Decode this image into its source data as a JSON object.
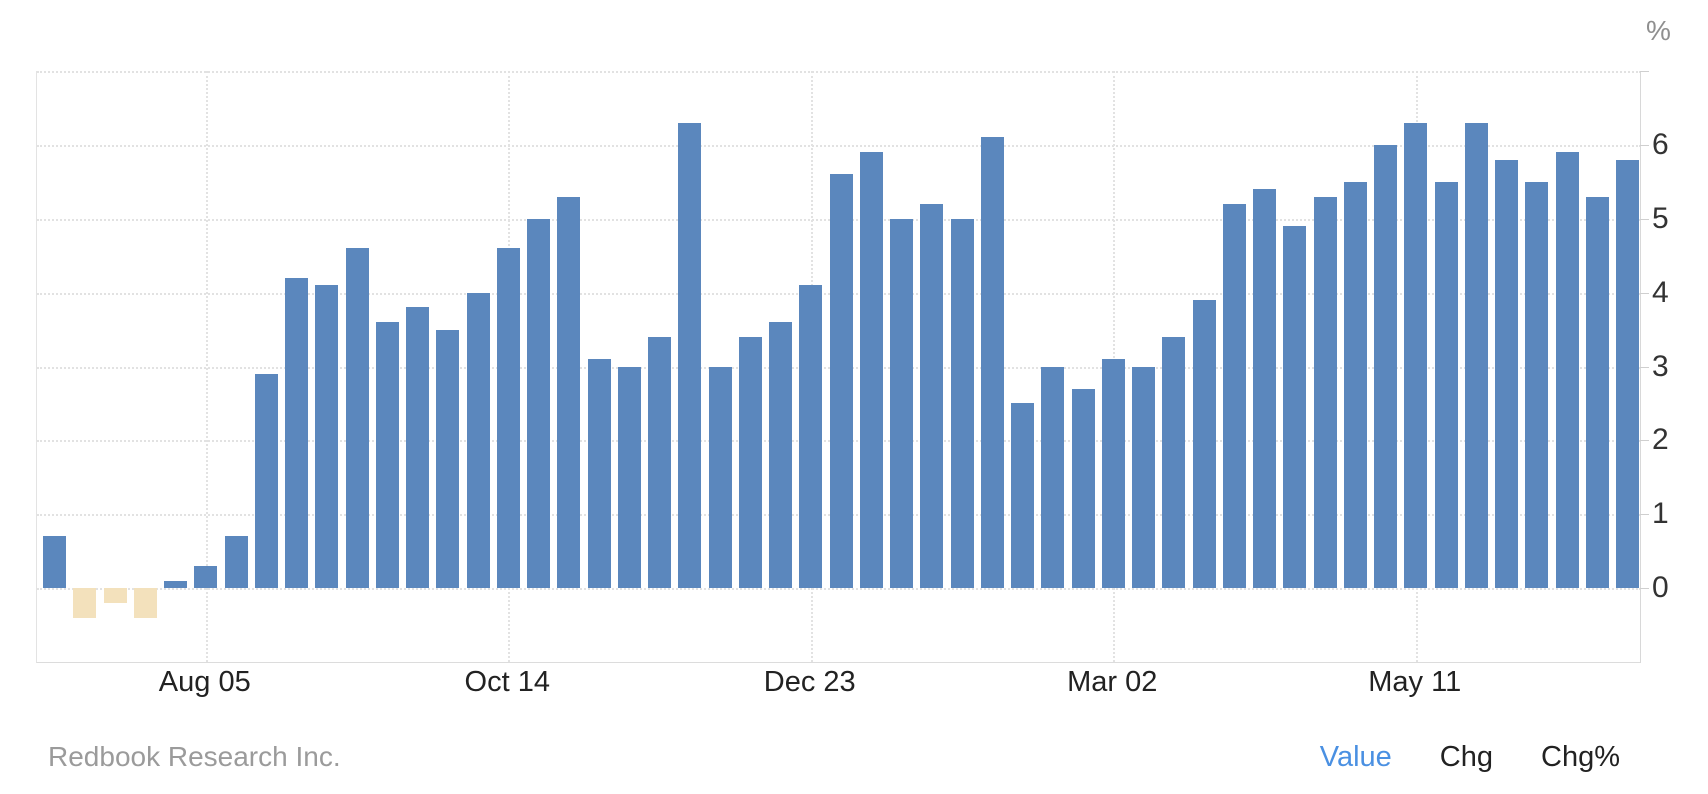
{
  "header": {
    "unit_label": "%"
  },
  "footer": {
    "source": "Redbook Research Inc.",
    "tabs": [
      {
        "label": "Value",
        "active": true
      },
      {
        "label": "Chg",
        "active": false
      },
      {
        "label": "Chg%",
        "active": false
      }
    ]
  },
  "colors": {
    "bar_positive": "#5b87bd",
    "bar_negative": "#f3e1bc",
    "active_tab": "#4a90e2",
    "grid": "#e2e2e2",
    "axis_text": "#333333",
    "date_text": "#222222",
    "muted_text": "#9b9b9b"
  },
  "chart_data": {
    "type": "bar",
    "title": "",
    "xlabel": "",
    "ylabel": "%",
    "values": [
      0.7,
      -0.4,
      -0.2,
      -0.4,
      0.1,
      0.3,
      0.7,
      2.9,
      4.2,
      4.1,
      4.6,
      3.6,
      3.8,
      3.5,
      4.0,
      4.6,
      5.0,
      5.3,
      3.1,
      3.0,
      3.4,
      6.3,
      3.0,
      3.4,
      3.6,
      4.1,
      5.6,
      5.9,
      5.0,
      5.2,
      5.0,
      6.1,
      2.5,
      3.0,
      2.7,
      3.1,
      3.0,
      3.4,
      3.9,
      5.2,
      5.4,
      4.9,
      5.3,
      5.5,
      6.0,
      6.3,
      5.5,
      6.3,
      5.8,
      5.5,
      5.9,
      5.3,
      5.8
    ],
    "x_tick_labels": [
      "Aug 05",
      "Oct 14",
      "Dec 23",
      "Mar 02",
      "May 11"
    ],
    "x_tick_indices": [
      5,
      15,
      25,
      35,
      45
    ],
    "y_ticks": [
      0,
      1,
      2,
      3,
      4,
      5,
      6
    ],
    "ylim": [
      -1,
      7
    ],
    "grid": "dotted",
    "legend_position": "none"
  }
}
